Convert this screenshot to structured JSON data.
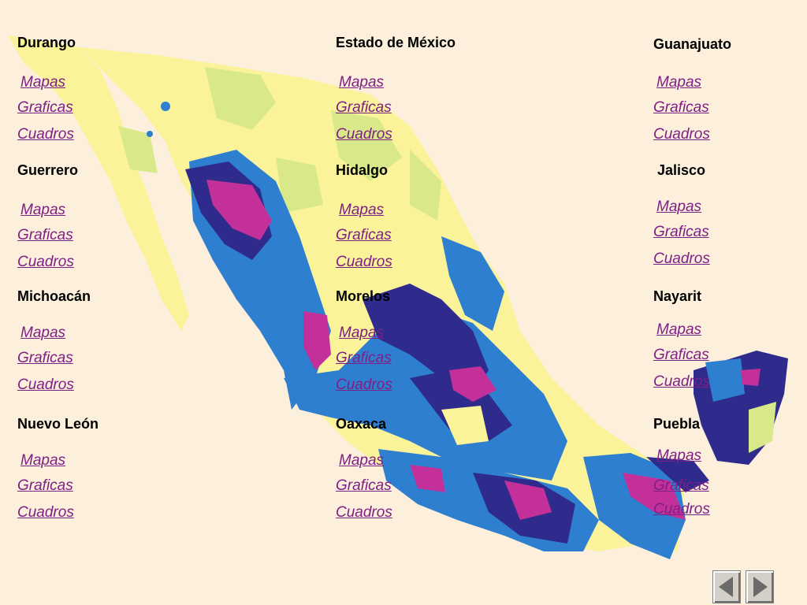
{
  "links": {
    "mapas": "Mapas",
    "graficas": "Graficas",
    "cuadros": "Cuadros"
  },
  "states": [
    {
      "name": "Durango"
    },
    {
      "name": "Estado de México"
    },
    {
      "name": "Guanajuato"
    },
    {
      "name": "Guerrero"
    },
    {
      "name": "Hidalgo"
    },
    {
      "name": "Jalisco"
    },
    {
      "name": "Michoacán"
    },
    {
      "name": "Morelos"
    },
    {
      "name": "Nayarit"
    },
    {
      "name": "Nuevo León"
    },
    {
      "name": "Oaxaca"
    },
    {
      "name": "Puebla"
    }
  ],
  "navigation": {
    "previous_icon": "triangle-left-icon",
    "next_icon": "triangle-right-icon"
  },
  "colors": {
    "background": "#fcefdc",
    "link": "#7e1f86",
    "map_yellow": "#fbf39a",
    "map_green": "#d9e98a",
    "map_blue": "#2f7fd0",
    "map_navy": "#2e2b8c",
    "map_magenta": "#c4309a"
  }
}
